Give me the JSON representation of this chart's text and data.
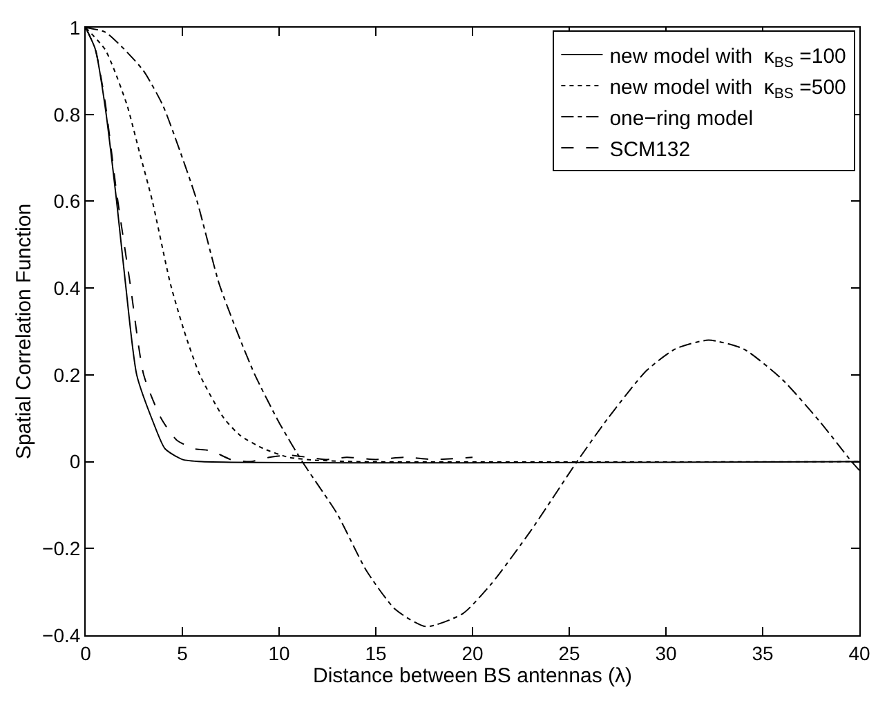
{
  "chart_data": {
    "type": "line",
    "xlabel": "Distance between BS antennas (λ)",
    "ylabel": "Spatial Correlation Function",
    "xlim": [
      0,
      40
    ],
    "ylim": [
      -0.4,
      1
    ],
    "xticks": [
      0,
      5,
      10,
      15,
      20,
      25,
      30,
      35,
      40
    ],
    "yticks": [
      -0.4,
      -0.2,
      0,
      0.2,
      0.4,
      0.6,
      0.8,
      1
    ],
    "legend": "top right",
    "marker": "none",
    "series": [
      {
        "name": "new model with  κ$_{BS}$ =100",
        "color": "#000000",
        "line_style": "solid",
        "x": [
          0,
          0.5,
          1,
          1.6,
          2.06,
          2.64,
          3.5,
          4.1,
          5,
          6,
          40
        ],
        "values": [
          1,
          0.95,
          0.82,
          0.6,
          0.41,
          0.2,
          0.09,
          0.03,
          0.005,
          0,
          0
        ]
      },
      {
        "name": "new model with  κ$_{BS}$ =500",
        "color": "#000000",
        "line_style": "dotted",
        "x": [
          0,
          1,
          1.5,
          2.15,
          2.8,
          3.45,
          4.38,
          5.1,
          5.9,
          7.15,
          8,
          9.2,
          10.5,
          12,
          14,
          40
        ],
        "values": [
          1,
          0.95,
          0.9,
          0.82,
          0.71,
          0.6,
          0.41,
          0.3,
          0.2,
          0.1,
          0.06,
          0.03,
          0.01,
          0.003,
          0,
          0
        ]
      },
      {
        "name": "one−ring model",
        "color": "#000000",
        "line_style": "dashdot",
        "x": [
          0,
          1,
          2,
          3,
          4,
          5,
          5.76,
          6.9,
          8,
          8.75,
          10,
          11.2,
          13,
          14.5,
          16,
          17.6,
          19.5,
          21,
          23,
          25.4,
          27,
          29,
          30.5,
          32.2,
          34,
          36,
          38,
          39.6,
          40
        ],
        "values": [
          1,
          0.99,
          0.95,
          0.9,
          0.82,
          0.7,
          0.6,
          0.41,
          0.28,
          0.2,
          0.09,
          0,
          -0.12,
          -0.25,
          -0.34,
          -0.38,
          -0.35,
          -0.28,
          -0.16,
          0,
          0.1,
          0.21,
          0.26,
          0.28,
          0.26,
          0.19,
          0.09,
          0,
          -0.02
        ]
      },
      {
        "name": "SCM132",
        "color": "#000000",
        "line_style": "dashed",
        "x": [
          0,
          0.5,
          1,
          1.6,
          2.3,
          3,
          3.9,
          4.7,
          5.6,
          6.5,
          7.5,
          8.5,
          9.5,
          10.5,
          11.5,
          12.5,
          13.5,
          15,
          16.5,
          18,
          20
        ],
        "values": [
          1,
          0.95,
          0.83,
          0.62,
          0.41,
          0.2,
          0.1,
          0.05,
          0.03,
          0.025,
          0.005,
          0,
          0.01,
          0.015,
          0.01,
          0.005,
          0.01,
          0.005,
          0.01,
          0.005,
          0.01
        ]
      }
    ]
  }
}
